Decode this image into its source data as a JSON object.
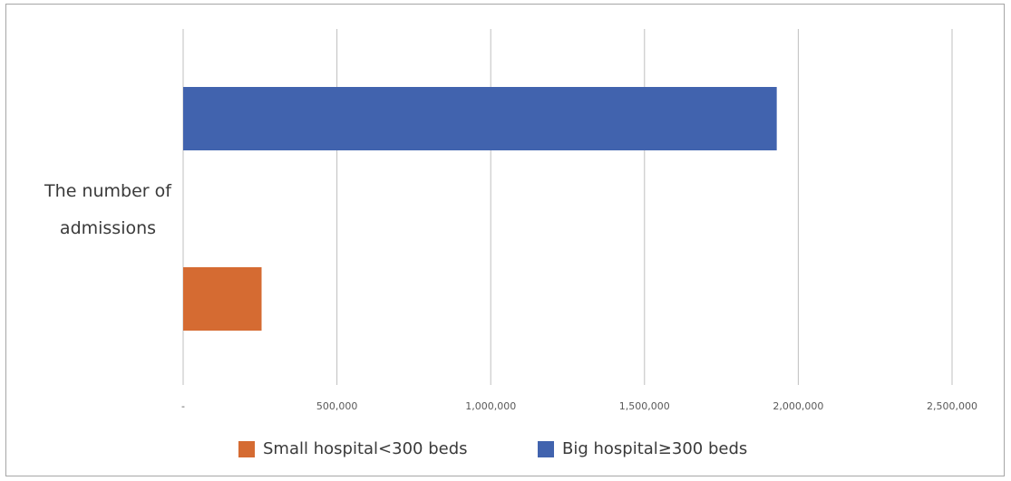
{
  "chart_data": {
    "type": "bar",
    "orientation": "horizontal",
    "categories": [
      "The number of admissions"
    ],
    "category_label_lines": [
      "The number of",
      "admissions"
    ],
    "series": [
      {
        "name": "Small hospital<300 beds",
        "values": [
          255000
        ],
        "color": "#D56B32"
      },
      {
        "name": "Big hospital≥300 beds",
        "values": [
          1930000
        ],
        "color": "#4163AE"
      }
    ],
    "xlim": [
      0,
      2500000
    ],
    "x_ticks": [
      0,
      500000,
      1000000,
      1500000,
      2000000,
      2500000
    ],
    "x_tick_labels": [
      "-",
      "500,000",
      "1,000,000",
      "1,500,000",
      "2,000,000",
      "2,500,000"
    ],
    "grid": "vertical",
    "legend_position": "bottom",
    "gridline_color": "#bfbfbf",
    "title": "",
    "xlabel": "",
    "ylabel": ""
  }
}
